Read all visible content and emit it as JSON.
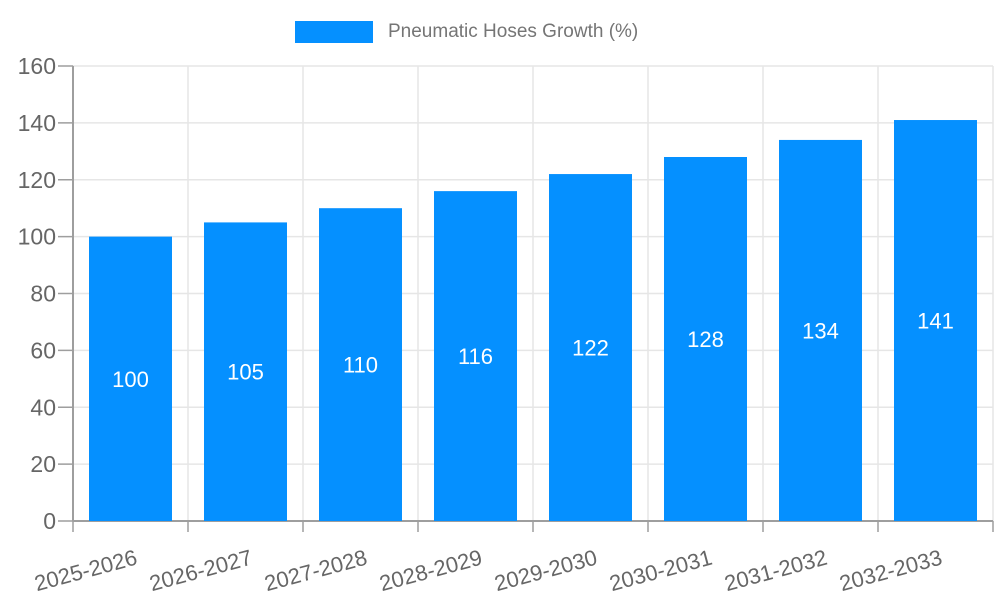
{
  "chart_data": {
    "type": "bar",
    "title": "",
    "legend": {
      "position": "top-center",
      "label": "Pneumatic Hoses Growth (%)"
    },
    "categories": [
      "2025-2026",
      "2026-2027",
      "2027-2028",
      "2028-2029",
      "2029-2030",
      "2030-2031",
      "2031-2032",
      "2032-2033"
    ],
    "series": [
      {
        "name": "Pneumatic Hoses Growth (%)",
        "values": [
          100,
          105,
          110,
          116,
          122,
          128,
          134,
          141
        ]
      }
    ],
    "xlabel": "",
    "ylabel": "",
    "ylim": [
      0,
      160
    ],
    "ytick_step": 20,
    "yticks": [
      0,
      20,
      40,
      60,
      80,
      100,
      120,
      140,
      160
    ],
    "grid": true,
    "value_labels": "inside-center",
    "x_label_rotation_deg": -15,
    "colors": {
      "bar": "#0590ff",
      "grid": "#e6e6e6",
      "axis": "#9e9e9e",
      "tick_text": "#666666",
      "value_label": "#ffffff",
      "legend_text": "#757575",
      "background": "#ffffff"
    }
  }
}
